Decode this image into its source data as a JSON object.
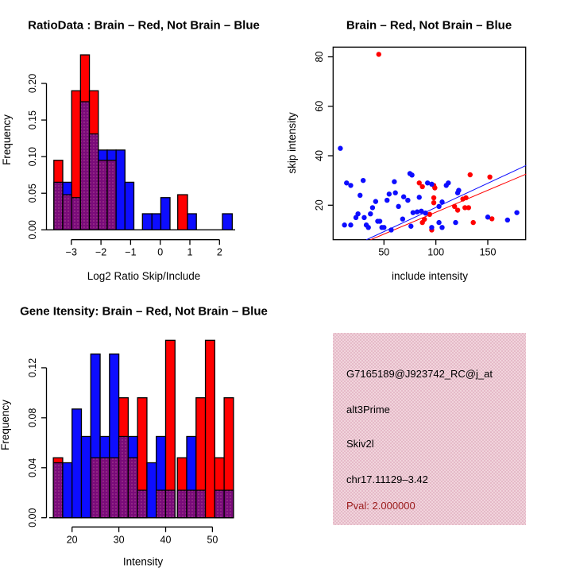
{
  "colors": {
    "red": "#ff0000",
    "blue": "#0d0dff",
    "purple_overlap": "#7a0b7a",
    "purple_dot": "#c9699f",
    "axis_black": "#000000",
    "pink_box": "#eccad4",
    "pval_text": "#9b1b1b"
  },
  "chart_data": [
    {
      "type": "bar",
      "subtype": "overlaid-histograms",
      "panel": "top-left",
      "title": "RatioData : Brain – Red, Not Brain – Blue",
      "xlabel": "Log2 Ratio Skip/Include",
      "ylabel": "Frequency",
      "legend": {
        "red": "Brain",
        "blue": "Not Brain"
      },
      "xlim": [
        -3.8,
        2.55
      ],
      "ylim": [
        0,
        0.247
      ],
      "grid": false,
      "xticks": [
        {
          "v": -3,
          "label": "−3"
        },
        {
          "v": -2,
          "label": "−2"
        },
        {
          "v": -1,
          "label": "−1"
        },
        {
          "v": 0,
          "label": "0"
        },
        {
          "v": 1,
          "label": "1"
        },
        {
          "v": 2,
          "label": "2"
        }
      ],
      "yticks": [
        {
          "v": 0,
          "label": "0.00"
        },
        {
          "v": 0.05,
          "label": "0.05"
        },
        {
          "v": 0.1,
          "label": "0.10"
        },
        {
          "v": 0.15,
          "label": "0.15"
        },
        {
          "v": 0.2,
          "label": "0.20"
        }
      ],
      "bars": [
        {
          "x0": -3.59,
          "x1": -3.29,
          "red": 0.095,
          "blue": 0.065
        },
        {
          "x0": -3.29,
          "x1": -2.99,
          "red": 0.048,
          "blue": 0.065
        },
        {
          "x0": -2.99,
          "x1": -2.69,
          "red": 0.19,
          "blue": 0.044
        },
        {
          "x0": -2.69,
          "x1": -2.39,
          "red": 0.239,
          "blue": 0.175
        },
        {
          "x0": -2.39,
          "x1": -2.09,
          "red": 0.19,
          "blue": 0.131
        },
        {
          "x0": -2.09,
          "x1": -1.79,
          "red": 0.095,
          "blue": 0.109
        },
        {
          "x0": -1.79,
          "x1": -1.49,
          "red": 0.095,
          "blue": 0.109
        },
        {
          "x0": -1.49,
          "x1": -1.19,
          "red": 0.0,
          "blue": 0.109
        },
        {
          "x0": -1.19,
          "x1": -0.89,
          "red": 0.0,
          "blue": 0.065
        },
        {
          "x0": -0.6,
          "x1": -0.28,
          "red": 0.0,
          "blue": 0.022
        },
        {
          "x0": -0.28,
          "x1": 0.02,
          "red": 0.0,
          "blue": 0.022
        },
        {
          "x0": 0.02,
          "x1": 0.33,
          "red": 0.0,
          "blue": 0.044
        },
        {
          "x0": 0.59,
          "x1": 0.92,
          "red": 0.048,
          "blue": 0.0
        },
        {
          "x0": 0.92,
          "x1": 1.22,
          "red": 0.0,
          "blue": 0.022
        },
        {
          "x0": 2.1,
          "x1": 2.43,
          "red": 0.0,
          "blue": 0.022
        }
      ]
    },
    {
      "type": "scatter",
      "panel": "top-right",
      "title": "Brain – Red, Not Brain – Blue",
      "xlabel": "include intensity",
      "ylabel": "skip intensity",
      "legend": {
        "red": "Brain",
        "blue": "Not Brain"
      },
      "xlim": [
        1,
        187
      ],
      "ylim": [
        6,
        84
      ],
      "grid": false,
      "xticks": [
        {
          "v": 50,
          "label": "50"
        },
        {
          "v": 100,
          "label": "100"
        },
        {
          "v": 150,
          "label": "150"
        }
      ],
      "yticks": [
        {
          "v": 20,
          "label": "20"
        },
        {
          "v": 40,
          "label": "40"
        },
        {
          "v": 60,
          "label": "60"
        },
        {
          "v": 80,
          "label": "80"
        }
      ],
      "series": [
        {
          "name": "brain-red",
          "color_key": "red",
          "points": [
            [
              45,
              81
            ],
            [
              84,
              29
            ],
            [
              87,
              27.5
            ],
            [
              98,
              28
            ],
            [
              99,
              27
            ],
            [
              98,
              23
            ],
            [
              98,
              21
            ],
            [
              94,
              16.3
            ],
            [
              89,
              14.3
            ],
            [
              87,
              13
            ],
            [
              96,
              10
            ],
            [
              118,
              19.5
            ],
            [
              121,
              18
            ],
            [
              126,
              22.5
            ],
            [
              129,
              23
            ],
            [
              128,
              19
            ],
            [
              131.5,
              19
            ],
            [
              133,
              32.3
            ],
            [
              136,
              13
            ],
            [
              152,
              31.4
            ],
            [
              154,
              14.5
            ]
          ]
        },
        {
          "name": "notbrain-blue",
          "color_key": "blue",
          "points": [
            [
              8,
              43
            ],
            [
              14,
              29
            ],
            [
              18,
              28
            ],
            [
              30,
              30
            ],
            [
              27,
              24
            ],
            [
              12,
              12
            ],
            [
              18,
              12
            ],
            [
              23,
              15
            ],
            [
              25,
              16.5
            ],
            [
              31,
              15
            ],
            [
              33,
              12
            ],
            [
              35,
              11
            ],
            [
              37,
              16.5
            ],
            [
              39,
              19
            ],
            [
              42,
              21.5
            ],
            [
              44,
              13.5
            ],
            [
              46,
              13.5
            ],
            [
              48,
              11
            ],
            [
              50,
              11
            ],
            [
              53,
              22
            ],
            [
              55,
              24.5
            ],
            [
              57,
              10
            ],
            [
              60,
              29.5
            ],
            [
              61,
              25
            ],
            [
              64,
              19.5
            ],
            [
              68,
              14.4
            ],
            [
              69,
              23.4
            ],
            [
              73,
              22
            ],
            [
              75,
              32.8
            ],
            [
              77,
              32.2
            ],
            [
              76,
              11.5
            ],
            [
              78,
              17
            ],
            [
              82,
              17.3
            ],
            [
              84,
              23.2
            ],
            [
              86,
              17.6
            ],
            [
              90,
              16.8
            ],
            [
              92,
              29
            ],
            [
              96,
              28.5
            ],
            [
              96,
              11
            ],
            [
              103,
              19.5
            ],
            [
              103,
              13
            ],
            [
              106,
              21.3
            ],
            [
              106,
              11
            ],
            [
              110,
              28
            ],
            [
              112,
              29
            ],
            [
              119,
              13
            ],
            [
              121,
              25
            ],
            [
              122,
              26
            ],
            [
              150,
              15.2
            ],
            [
              169,
              14
            ],
            [
              178,
              17
            ]
          ]
        }
      ],
      "fit_lines": [
        {
          "name": "blue-fit",
          "color_key": "blue",
          "from": [
            33,
            6
          ],
          "to": [
            187,
            36.1
          ]
        },
        {
          "name": "red-fit",
          "color_key": "red",
          "from": [
            37,
            6
          ],
          "to": [
            187,
            32.6
          ]
        }
      ]
    },
    {
      "type": "bar",
      "subtype": "overlaid-histograms",
      "panel": "bottom-left",
      "title": "Gene Itensity: Brain – Red, Not Brain – Blue",
      "xlabel": "Intensity",
      "ylabel": "Frequency",
      "legend": {
        "red": "Brain",
        "blue": "Not Brain"
      },
      "xlim": [
        15,
        55
      ],
      "ylim": [
        0,
        0.142
      ],
      "grid": false,
      "xticks": [
        {
          "v": 20,
          "label": "20"
        },
        {
          "v": 30,
          "label": "30"
        },
        {
          "v": 40,
          "label": "40"
        },
        {
          "v": 50,
          "label": "50"
        }
      ],
      "yticks": [
        {
          "v": 0,
          "label": "0.00"
        },
        {
          "v": 0.04,
          "label": "0.04"
        },
        {
          "v": 0.08,
          "label": "0.08"
        },
        {
          "v": 0.12,
          "label": "0.12"
        }
      ],
      "bars": [
        {
          "x0": 16,
          "x1": 18,
          "red": 0.048,
          "blue": 0.044
        },
        {
          "x0": 18,
          "x1": 20,
          "red": 0.0,
          "blue": 0.044
        },
        {
          "x0": 20,
          "x1": 22,
          "red": 0.0,
          "blue": 0.087
        },
        {
          "x0": 22,
          "x1": 24,
          "red": 0.0,
          "blue": 0.065
        },
        {
          "x0": 24,
          "x1": 26,
          "red": 0.048,
          "blue": 0.131
        },
        {
          "x0": 26,
          "x1": 28,
          "red": 0.048,
          "blue": 0.065
        },
        {
          "x0": 28,
          "x1": 30,
          "red": 0.048,
          "blue": 0.131
        },
        {
          "x0": 30,
          "x1": 32,
          "red": 0.096,
          "blue": 0.065
        },
        {
          "x0": 32,
          "x1": 34,
          "red": 0.048,
          "blue": 0.065
        },
        {
          "x0": 34,
          "x1": 36,
          "red": 0.096,
          "blue": 0.022
        },
        {
          "x0": 36,
          "x1": 38,
          "red": 0.0,
          "blue": 0.044
        },
        {
          "x0": 38,
          "x1": 40,
          "red": 0.022,
          "blue": 0.065
        },
        {
          "x0": 40,
          "x1": 42,
          "red": 0.142,
          "blue": 0.022
        },
        {
          "x0": 42.5,
          "x1": 44.5,
          "red": 0.048,
          "blue": 0.022
        },
        {
          "x0": 44.5,
          "x1": 46.5,
          "red": 0.022,
          "blue": 0.065
        },
        {
          "x0": 46.5,
          "x1": 48.5,
          "red": 0.096,
          "blue": 0.022
        },
        {
          "x0": 48.5,
          "x1": 50.5,
          "red": 0.142,
          "blue": 0.0
        },
        {
          "x0": 50.5,
          "x1": 52.5,
          "red": 0.048,
          "blue": 0.022
        },
        {
          "x0": 52.5,
          "x1": 54.5,
          "red": 0.096,
          "blue": 0.022
        }
      ]
    }
  ],
  "info_box": {
    "lines": [
      "G7165189@J923742_RC@j_at",
      "alt3Prime",
      "Skiv2l",
      "chr17.11129–3.42",
      "Pval: 2.000000"
    ]
  }
}
